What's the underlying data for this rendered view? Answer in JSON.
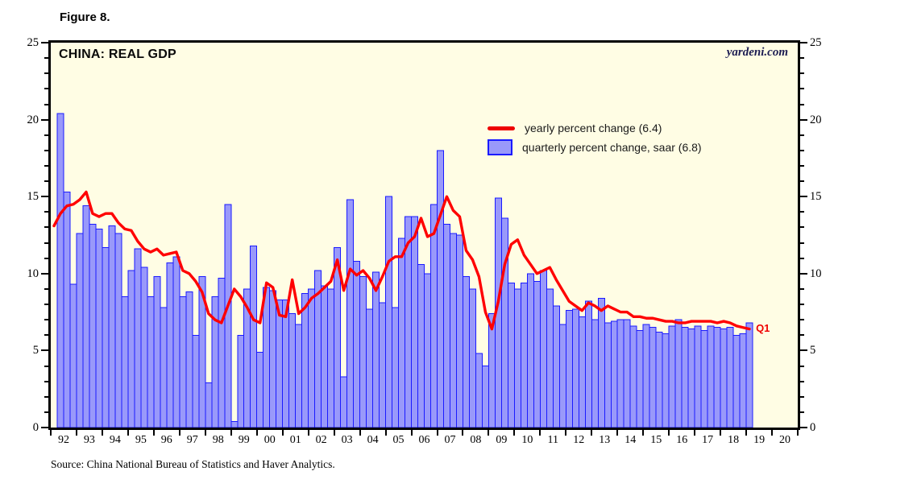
{
  "figure_label": "Figure 8.",
  "chart": {
    "title": "CHINA: REAL GDP",
    "watermark": "yardeni.com",
    "endpoint_label": "Q1"
  },
  "legend": {
    "line_label": "yearly percent change (6.4)",
    "bar_label": "quarterly percent change, saar (6.8)"
  },
  "source": "Source: China National Bureau of Statistics and Haver Analytics.",
  "colors": {
    "plot_background": "#FFFDE4",
    "bar_fill": "#9999FA",
    "bar_edge": "#1A1AFF",
    "line": "#FF0000",
    "frame": "#000000",
    "watermark_text": "#1c1c52"
  },
  "chart_data": {
    "type": "bar+line",
    "title": "CHINA: REAL GDP",
    "x_start": "1992Q1",
    "x_end": "2019Q1",
    "n_slots": 116,
    "x_tick_labels": [
      "92",
      "93",
      "94",
      "95",
      "96",
      "97",
      "98",
      "99",
      "00",
      "01",
      "02",
      "03",
      "04",
      "05",
      "06",
      "07",
      "08",
      "09",
      "10",
      "11",
      "12",
      "13",
      "14",
      "15",
      "16",
      "17",
      "18",
      "19",
      "20"
    ],
    "y_tick_labels": [
      "0",
      "5",
      "10",
      "15",
      "20",
      "25"
    ],
    "ylim": [
      0,
      25
    ],
    "ytick_major": 5,
    "ytick_minor": 1,
    "grid": "off",
    "legend_position": "upper-middle-right",
    "series": [
      {
        "name": "yearly percent change",
        "type": "line",
        "color": "#FF0000",
        "latest_value": 6.4,
        "values": [
          13.1,
          13.9,
          14.4,
          14.5,
          14.8,
          15.3,
          13.9,
          13.7,
          13.9,
          13.9,
          13.3,
          12.9,
          12.8,
          12.1,
          11.6,
          11.4,
          11.6,
          11.2,
          11.3,
          11.4,
          10.2,
          10.0,
          9.5,
          8.8,
          7.4,
          7.0,
          6.8,
          7.9,
          9.0,
          8.5,
          7.8,
          7.0,
          6.8,
          9.4,
          9.1,
          7.3,
          7.2,
          9.6,
          7.4,
          7.8,
          8.4,
          8.7,
          9.1,
          9.5,
          10.9,
          8.9,
          10.3,
          9.9,
          10.2,
          9.7,
          8.9,
          9.8,
          10.8,
          11.1,
          11.1,
          12.0,
          12.4,
          13.6,
          12.4,
          12.6,
          13.8,
          15.0,
          14.1,
          13.7,
          11.5,
          10.9,
          9.8,
          7.5,
          6.4,
          8.2,
          10.6,
          11.9,
          12.2,
          11.2,
          10.6,
          10.0,
          10.2,
          10.4,
          9.6,
          8.9,
          8.2,
          7.9,
          7.6,
          8.1,
          7.9,
          7.6,
          7.9,
          7.7,
          7.5,
          7.5,
          7.2,
          7.2,
          7.1,
          7.1,
          7.0,
          6.9,
          6.9,
          6.8,
          6.8,
          6.9,
          6.9,
          6.9,
          6.9,
          6.8,
          6.9,
          6.8,
          6.6,
          6.5,
          6.4
        ]
      },
      {
        "name": "quarterly percent change, saar",
        "type": "bar",
        "color": "#9999FA",
        "latest_value": 6.8,
        "values": [
          null,
          20.4,
          15.3,
          9.3,
          12.6,
          14.4,
          13.2,
          12.9,
          11.7,
          13.1,
          12.6,
          8.5,
          10.2,
          11.6,
          10.4,
          8.5,
          9.8,
          7.8,
          10.7,
          11.1,
          8.5,
          8.8,
          6.0,
          9.8,
          2.9,
          8.5,
          9.7,
          14.5,
          0.4,
          6.0,
          9.0,
          11.8,
          4.9,
          9.1,
          8.9,
          8.3,
          8.3,
          7.4,
          6.7,
          8.7,
          9.0,
          10.2,
          9.2,
          9.0,
          11.7,
          3.3,
          14.8,
          10.8,
          9.8,
          7.7,
          10.1,
          8.1,
          15.0,
          7.8,
          12.3,
          13.7,
          13.7,
          10.6,
          10.0,
          14.5,
          18.0,
          13.2,
          12.6,
          12.5,
          9.8,
          9.0,
          4.8,
          4.0,
          7.4,
          14.9,
          13.6,
          9.4,
          9.0,
          9.4,
          10.0,
          9.5,
          10.2,
          9.0,
          7.9,
          6.7,
          7.6,
          7.7,
          7.2,
          8.2,
          7.0,
          8.4,
          6.8,
          6.9,
          7.0,
          7.0,
          6.6,
          6.3,
          6.7,
          6.5,
          6.2,
          6.1,
          6.6,
          7.0,
          6.5,
          6.4,
          6.6,
          6.3,
          6.6,
          6.5,
          6.4,
          6.5,
          6.0,
          6.1,
          6.8
        ]
      }
    ]
  }
}
